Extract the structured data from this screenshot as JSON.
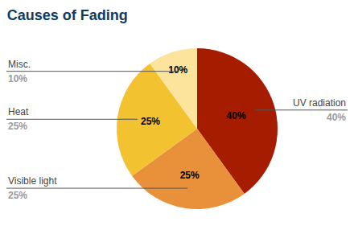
{
  "chart_data": {
    "type": "pie",
    "title": "Causes of Fading",
    "categories": [
      "UV radiation",
      "Visible light",
      "Heat",
      "Misc."
    ],
    "values": [
      40,
      25,
      25,
      10
    ],
    "value_labels": [
      "40%",
      "25%",
      "25%",
      "10%"
    ],
    "colors": [
      "#a51c00",
      "#e8913a",
      "#f2c231",
      "#fde49c"
    ],
    "data_labels": true
  }
}
